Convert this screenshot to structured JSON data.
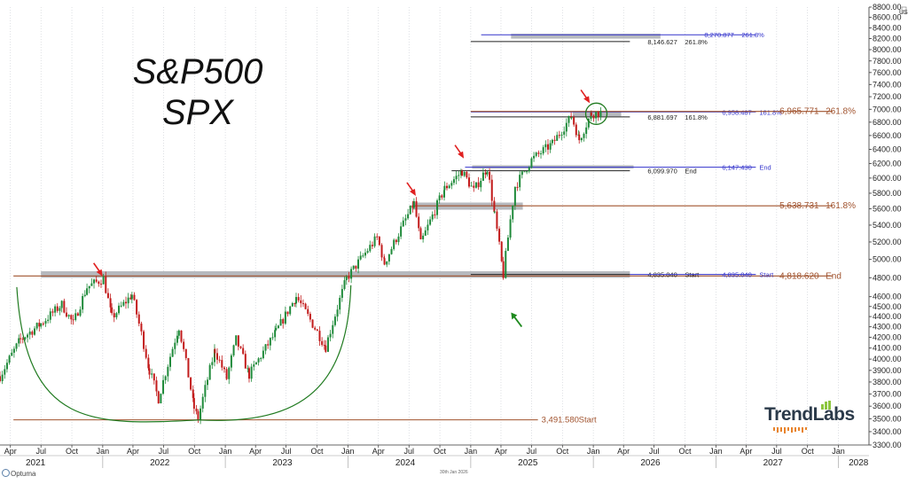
{
  "title_line1": "S&P500",
  "title_line2": "SPX",
  "brand": "TrendLabs",
  "footer_left": "Optuma",
  "footer_date": "30th Jan 2026",
  "currency_label": "USD",
  "colors": {
    "up": "#1f8a3a",
    "down": "#c21b1b",
    "brown": "#a0522d",
    "blue": "#3333cc",
    "black": "#222222",
    "green_curve": "#1f7a1f",
    "arrow_red": "#e02020",
    "arrow_green": "#1f8a1f",
    "zone": "#a9adb3"
  },
  "chart_data": {
    "type": "candlestick",
    "x_range": [
      "2021-03",
      "2028-04"
    ],
    "ylim": [
      3300,
      8800
    ],
    "y_scale": "log",
    "y_ticks": [
      3300,
      3400,
      3500,
      3600,
      3700,
      3800,
      3900,
      4000,
      4100,
      4200,
      4300,
      4400,
      4500,
      4600,
      4800,
      5000,
      5200,
      5400,
      5600,
      5800,
      6000,
      6200,
      6400,
      6600,
      6800,
      7000,
      7200,
      7400,
      7600,
      7800,
      8000,
      8200,
      8400,
      8600,
      8800
    ],
    "y_tick_labels": [
      "3300.00",
      "3400.00",
      "3500.00",
      "3600.00",
      "3700.00",
      "3800.00",
      "3900.00",
      "4000.00",
      "4100.00",
      "4200.00",
      "4300.00",
      "4400.00",
      "4500.00",
      "4600.00",
      "4800.00",
      "5000.00",
      "5200.00",
      "5400.00",
      "5600.00",
      "5800.00",
      "6000.00",
      "6200.00",
      "6400.00",
      "6600.00",
      "6800.00",
      "7000.00",
      "7200.00",
      "7400.00",
      "7600.00",
      "7800.00",
      "8000.00",
      "8200.00",
      "8400.00",
      "8600.00",
      "8800.00"
    ],
    "month_ticks": [
      {
        "date": "2021-04",
        "label": "Apr"
      },
      {
        "date": "2021-07",
        "label": "Jul"
      },
      {
        "date": "2021-10",
        "label": "Oct"
      },
      {
        "date": "2022-01",
        "label": "Jan"
      },
      {
        "date": "2022-04",
        "label": "Apr"
      },
      {
        "date": "2022-07",
        "label": "Jul"
      },
      {
        "date": "2022-10",
        "label": "Oct"
      },
      {
        "date": "2023-01",
        "label": "Jan"
      },
      {
        "date": "2023-04",
        "label": "Apr"
      },
      {
        "date": "2023-07",
        "label": "Jul"
      },
      {
        "date": "2023-10",
        "label": "Oct"
      },
      {
        "date": "2024-01",
        "label": "Jan"
      },
      {
        "date": "2024-04",
        "label": "Apr"
      },
      {
        "date": "2024-07",
        "label": "Jul"
      },
      {
        "date": "2024-10",
        "label": "Oct"
      },
      {
        "date": "2025-01",
        "label": "Jan"
      },
      {
        "date": "2025-04",
        "label": "Apr"
      },
      {
        "date": "2025-07",
        "label": "Jul"
      },
      {
        "date": "2025-10",
        "label": "Oct"
      },
      {
        "date": "2026-01",
        "label": "Jan"
      },
      {
        "date": "2026-04",
        "label": "Apr"
      },
      {
        "date": "2026-07",
        "label": "Jul"
      },
      {
        "date": "2026-10",
        "label": "Oct"
      },
      {
        "date": "2027-01",
        "label": "Jan"
      },
      {
        "date": "2027-04",
        "label": "Apr"
      },
      {
        "date": "2027-07",
        "label": "Jul"
      },
      {
        "date": "2027-10",
        "label": "Oct"
      },
      {
        "date": "2028-01",
        "label": "Jan"
      }
    ],
    "year_labels": [
      {
        "year": "2021",
        "date": "2021-06-15"
      },
      {
        "year": "2022",
        "date": "2022-06-20"
      },
      {
        "year": "2023",
        "date": "2023-06-20"
      },
      {
        "year": "2024",
        "date": "2024-06-20"
      },
      {
        "year": "2025",
        "date": "2025-06-20"
      },
      {
        "year": "2026",
        "date": "2026-06-20"
      },
      {
        "year": "2027",
        "date": "2027-06-20"
      },
      {
        "year": "2028",
        "date": "2028-03-01"
      }
    ],
    "weekly_path": [
      [
        "2021-03-01",
        3850
      ],
      [
        "2021-05-01",
        4180
      ],
      [
        "2021-07-01",
        4330
      ],
      [
        "2021-09-01",
        4520
      ],
      [
        "2021-10-05",
        4330
      ],
      [
        "2021-11-15",
        4700
      ],
      [
        "2022-01-03",
        4790
      ],
      [
        "2022-01-28",
        4390
      ],
      [
        "2022-03-29",
        4620
      ],
      [
        "2022-05-20",
        3900
      ],
      [
        "2022-06-16",
        3660
      ],
      [
        "2022-08-16",
        4300
      ],
      [
        "2022-09-30",
        3585
      ],
      [
        "2022-10-12",
        3500
      ],
      [
        "2022-12-01",
        4080
      ],
      [
        "2023-01-05",
        3830
      ],
      [
        "2023-02-02",
        4180
      ],
      [
        "2023-03-13",
        3860
      ],
      [
        "2023-06-01",
        4250
      ],
      [
        "2023-07-31",
        4600
      ],
      [
        "2023-10-27",
        4110
      ],
      [
        "2023-12-28",
        4790
      ],
      [
        "2024-03-28",
        5250
      ],
      [
        "2024-04-19",
        4960
      ],
      [
        "2024-07-16",
        5670
      ],
      [
        "2024-08-05",
        5180
      ],
      [
        "2024-10-15",
        5860
      ],
      [
        "2024-12-06",
        6090
      ],
      [
        "2025-01-10",
        5830
      ],
      [
        "2025-02-19",
        6140
      ],
      [
        "2025-03-13",
        5520
      ],
      [
        "2025-04-08",
        4830
      ],
      [
        "2025-05-13",
        5890
      ],
      [
        "2025-07-01",
        6250
      ],
      [
        "2025-09-01",
        6480
      ],
      [
        "2025-10-28",
        6890
      ],
      [
        "2025-11-20",
        6540
      ],
      [
        "2025-12-26",
        6930
      ],
      [
        "2026-01-30",
        6950
      ]
    ],
    "zones": [
      {
        "from": "2021-07-01",
        "to": "2026-04-20",
        "low": 4800,
        "high": 4870
      },
      {
        "from": "2025-01-05",
        "to": "2026-05-01",
        "low": 6130,
        "high": 6175
      },
      {
        "from": "2024-07-10",
        "to": "2025-06-05",
        "low": 5590,
        "high": 5680
      },
      {
        "from": "2025-11-01",
        "to": "2026-03-25",
        "low": 6890,
        "high": 6970
      },
      {
        "from": "2025-05-01",
        "to": "2026-07-20",
        "low": 8200,
        "high": 8290
      }
    ],
    "level_lines": [
      {
        "value": 4818.62,
        "from": "2021-04-10",
        "to": "2027-12-15",
        "color": "brown",
        "label": "4,818.620",
        "tag": "End",
        "big": true
      },
      {
        "value": 4835.04,
        "from": "2025-01-01",
        "to": "2026-04-20",
        "color": "black",
        "label": "4,835.040",
        "tag": "Start",
        "big": false
      },
      {
        "value": 4835.04,
        "from": "2026-04-20",
        "to": "2027-04-30",
        "color": "blue",
        "label": "4,835.040",
        "tag": "Start",
        "big": false
      },
      {
        "value": 5638.731,
        "from": "2024-07-10",
        "to": "2027-12-15",
        "color": "brown",
        "label": "5,638.731",
        "tag": "161.8%",
        "big": true
      },
      {
        "value": 6099.97,
        "from": "2024-11-05",
        "to": "2026-04-20",
        "color": "black",
        "label": "6,099.970",
        "tag": "End",
        "big": false
      },
      {
        "value": 6147.43,
        "from": "2024-12-15",
        "to": "2027-04-30",
        "color": "blue",
        "label": "6,147.430",
        "tag": "End",
        "big": false
      },
      {
        "value": 6881.697,
        "from": "2025-01-01",
        "to": "2026-04-20",
        "color": "black",
        "label": "6,881.697",
        "tag": "161.8%",
        "big": false
      },
      {
        "value": 6958.487,
        "from": "2025-01-01",
        "to": "2027-04-30",
        "color": "blue",
        "label": "6,958.487",
        "tag": "161.8%",
        "big": false
      },
      {
        "value": 6965.771,
        "from": "2025-01-01",
        "to": "2027-12-15",
        "color": "brown",
        "label": "6,965.771",
        "tag": "261.8%",
        "big": true
      },
      {
        "value": 8146.627,
        "from": "2025-01-01",
        "to": "2026-04-20",
        "color": "black",
        "label": "8,146.627",
        "tag": "261.8%",
        "big": false
      },
      {
        "value": 8270.877,
        "from": "2025-02-01",
        "to": "2027-04-30",
        "color": "blue",
        "label": "8,270.877",
        "tag": "261.8%",
        "big": false
      },
      {
        "value": 3491.58,
        "from": "2021-04-10",
        "to": "2025-07-20",
        "color": "brown",
        "label": "3,491.580",
        "tag": "Start",
        "big": false
      }
    ],
    "arc": {
      "left": [
        "2021-04-20",
        4700
      ],
      "bottom": [
        "2022-10-15",
        3490
      ],
      "right": [
        "2024-01-10",
        4720
      ]
    },
    "circle": {
      "date": "2026-01-10",
      "value": 6930
    },
    "red_arrows": [
      {
        "date": "2021-12-05",
        "value": 4960
      },
      {
        "date": "2024-06-25",
        "value": 5940
      },
      {
        "date": "2024-11-15",
        "value": 6460
      },
      {
        "date": "2025-11-25",
        "value": 7310
      }
    ],
    "green_arrow": {
      "date": "2025-05-01",
      "value": 4440
    }
  }
}
